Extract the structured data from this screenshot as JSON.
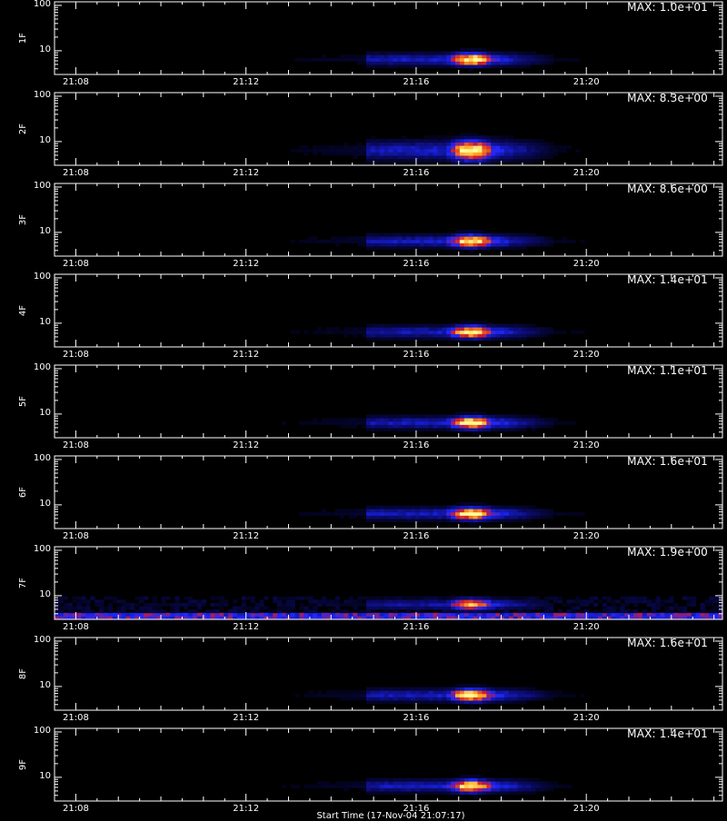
{
  "chart_data": {
    "type": "heatmap",
    "x_tick_labels": [
      "21:08",
      "21:12",
      "21:16",
      "21:20"
    ],
    "x_tick_minutes": [
      8,
      12,
      16,
      20
    ],
    "x_range_minutes": [
      7.5,
      23.2
    ],
    "y_tick_labels": [
      "100",
      "10"
    ],
    "y_scale": "log",
    "y_range": [
      3,
      120
    ],
    "xlabel": "Start Time (17-Nov-04 21:07:17)",
    "colors": {
      "frame": "#ffffff",
      "background": "#000000",
      "colormap": [
        "#000000",
        "#0b0b6e",
        "#1c28ff",
        "#d51b2a",
        "#ffa51f",
        "#ffff9a"
      ]
    },
    "panels": [
      {
        "label": "1F",
        "max": "MAX: 1.0e+01",
        "noise": 0.0,
        "strength": 1.0,
        "spread": 1.0
      },
      {
        "label": "2F",
        "max": "MAX: 8.3e+00",
        "noise": 0.0,
        "strength": 1.0,
        "spread": 1.6
      },
      {
        "label": "3F",
        "max": "MAX: 8.6e+00",
        "noise": 0.0,
        "strength": 1.0,
        "spread": 1.0
      },
      {
        "label": "4F",
        "max": "MAX: 1.4e+01",
        "noise": 0.0,
        "strength": 0.95,
        "spread": 1.0
      },
      {
        "label": "5F",
        "max": "MAX: 1.1e+01",
        "noise": 0.0,
        "strength": 1.0,
        "spread": 1.0
      },
      {
        "label": "6F",
        "max": "MAX: 1.6e+01",
        "noise": 0.0,
        "strength": 1.0,
        "spread": 1.0
      },
      {
        "label": "7F",
        "max": "MAX: 1.9e+00",
        "noise": 1.0,
        "strength": 0.85,
        "spread": 0.9
      },
      {
        "label": "8F",
        "max": "MAX: 1.6e+01",
        "noise": 0.0,
        "strength": 1.0,
        "spread": 1.0
      },
      {
        "label": "9F",
        "max": "MAX: 1.4e+01",
        "noise": 0.0,
        "strength": 1.0,
        "spread": 1.0
      }
    ],
    "event": {
      "peak_start_minutes": 17.0,
      "peak_end_minutes": 17.6,
      "tail_end_minutes": 19.3,
      "pre_start_minutes": 14.8,
      "peak_energy": 6.5
    }
  }
}
